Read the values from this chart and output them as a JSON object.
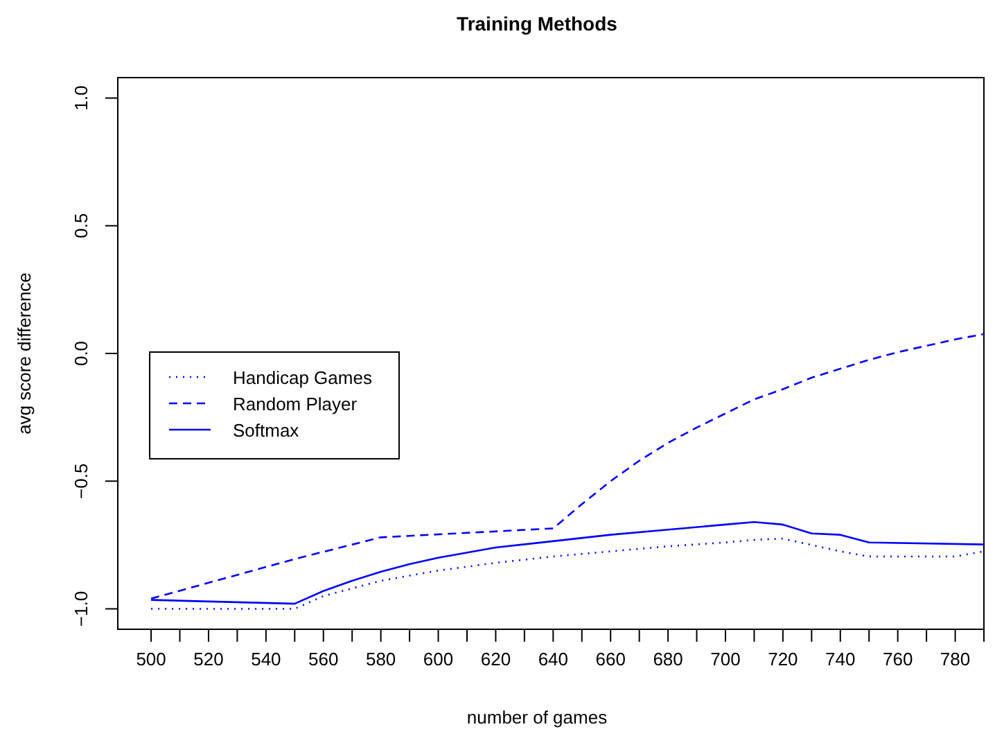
{
  "chart_data": {
    "type": "line",
    "title": "Training Methods",
    "xlabel": "number of games",
    "ylabel": "avg score difference",
    "xlim": [
      488.4,
      790
    ],
    "ylim": [
      -1.08,
      1.08
    ],
    "xticks": [
      500,
      {
        "value": 510,
        "label": null
      },
      520,
      {
        "value": 530,
        "label": null
      },
      540,
      {
        "value": 550,
        "label": null
      },
      560,
      {
        "value": 570,
        "label": null
      },
      580,
      {
        "value": 590,
        "label": null
      },
      600,
      {
        "value": 610,
        "label": null
      },
      620,
      {
        "value": 630,
        "label": null
      },
      640,
      {
        "value": 650,
        "label": null
      },
      660,
      {
        "value": 670,
        "label": null
      },
      680,
      {
        "value": 690,
        "label": null
      },
      700,
      {
        "value": 710,
        "label": null
      },
      720,
      {
        "value": 730,
        "label": null
      },
      740,
      {
        "value": 750,
        "label": null
      },
      760,
      {
        "value": 770,
        "label": null
      },
      780,
      {
        "value": 790,
        "label": null
      }
    ],
    "yticks": [
      {
        "value": -1,
        "label": "−1.0"
      },
      {
        "value": -0.5,
        "label": "−0.5"
      },
      {
        "value": 0,
        "label": "0.0"
      },
      {
        "value": 0.5,
        "label": "0.5"
      },
      {
        "value": 1,
        "label": "1.0"
      }
    ],
    "legend": "left",
    "grid": false,
    "series": [
      {
        "name": "Handicap Games",
        "color": "#0000ff",
        "line_style": "dotted",
        "x": [
          500,
          550,
          560,
          580,
          600,
          620,
          640,
          660,
          680,
          700,
          710,
          720,
          740,
          750,
          780,
          790
        ],
        "values": [
          -1.0,
          -1.0,
          -0.95,
          -0.89,
          -0.85,
          -0.82,
          -0.795,
          -0.775,
          -0.755,
          -0.74,
          -0.73,
          -0.725,
          -0.775,
          -0.795,
          -0.795,
          -0.775
        ]
      },
      {
        "name": "Random Player",
        "color": "#0000ff",
        "line_style": "dashed",
        "x": [
          500,
          550,
          580,
          640,
          650,
          660,
          670,
          680,
          690,
          700,
          710,
          720,
          730,
          740,
          750,
          760,
          770,
          780,
          790
        ],
        "values": [
          -0.96,
          -0.805,
          -0.72,
          -0.685,
          -0.59,
          -0.5,
          -0.42,
          -0.35,
          -0.29,
          -0.235,
          -0.18,
          -0.14,
          -0.095,
          -0.06,
          -0.025,
          0.005,
          0.03,
          0.055,
          0.076
        ]
      },
      {
        "name": "Softmax",
        "color": "#0000ff",
        "line_style": "solid",
        "x": [
          500,
          550,
          560,
          570,
          580,
          590,
          600,
          620,
          640,
          660,
          680,
          700,
          710,
          720,
          730,
          740,
          750,
          790
        ],
        "values": [
          -0.965,
          -0.98,
          -0.93,
          -0.89,
          -0.855,
          -0.825,
          -0.8,
          -0.76,
          -0.735,
          -0.71,
          -0.69,
          -0.67,
          -0.66,
          -0.67,
          -0.705,
          -0.71,
          -0.74,
          -0.748
        ]
      }
    ]
  }
}
